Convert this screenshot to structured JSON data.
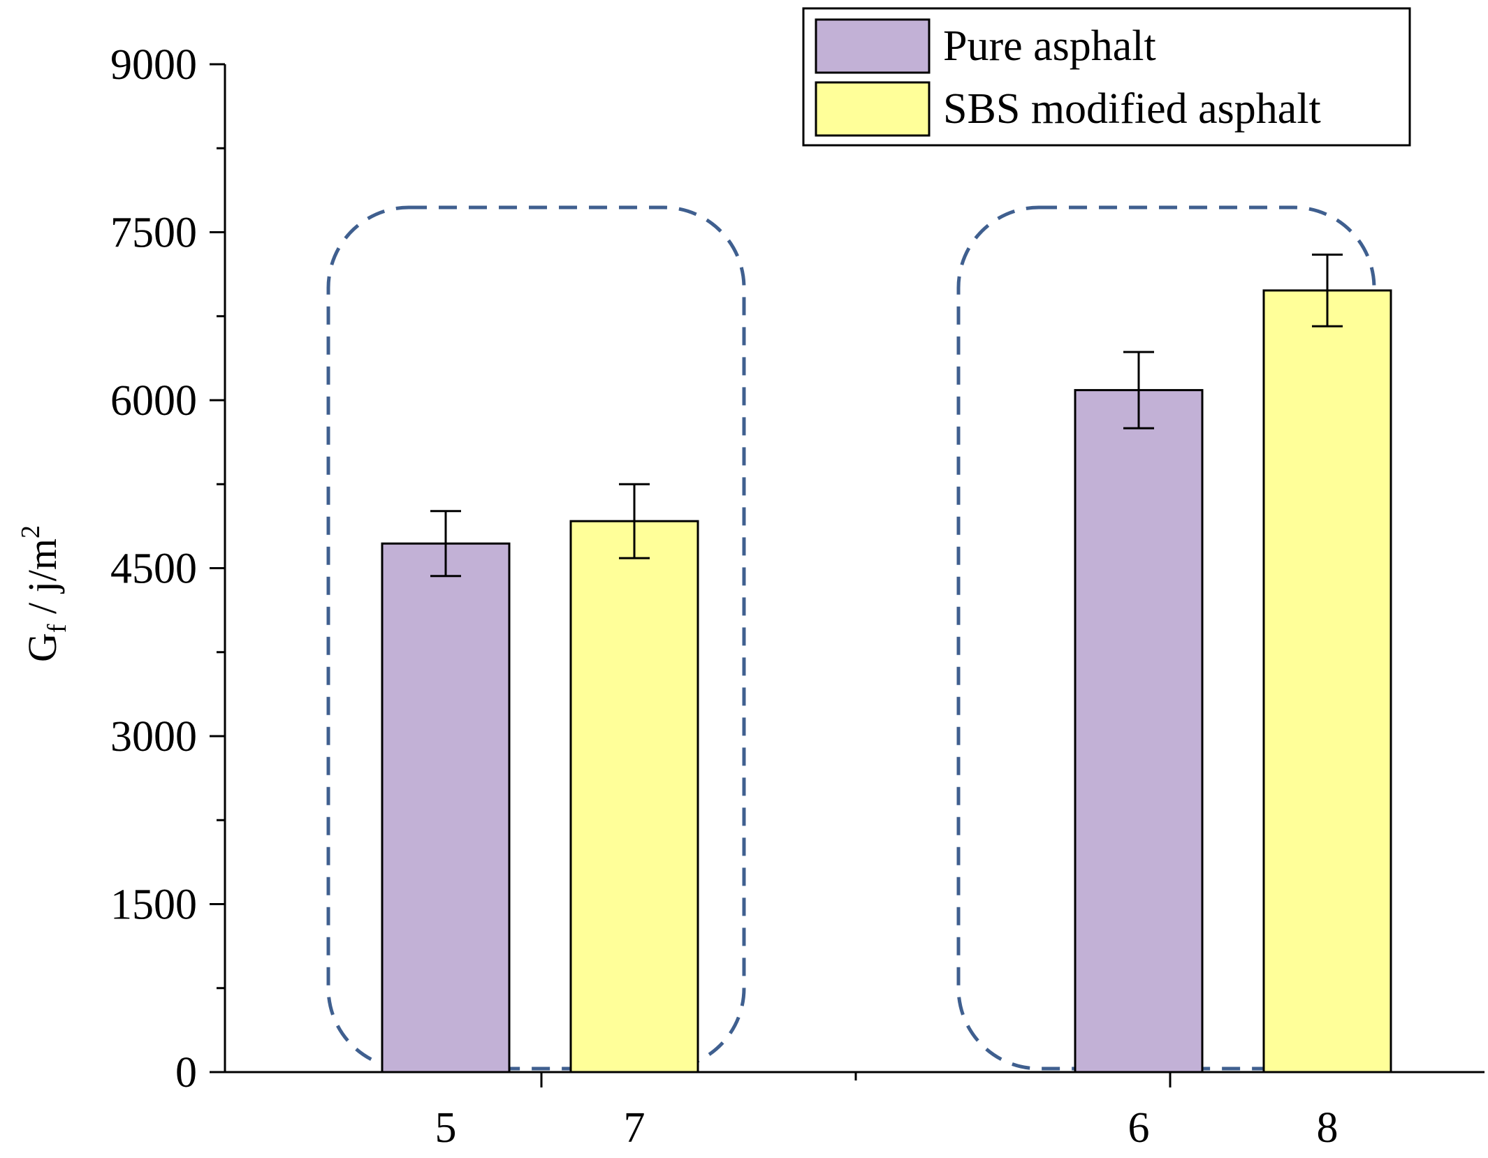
{
  "chart_data": {
    "type": "bar",
    "ylabel": {
      "main": "G",
      "sub": "f",
      "rest": " / j/m",
      "sup": "2"
    },
    "ylim": [
      0,
      9000
    ],
    "y_ticks": [
      0,
      1500,
      3000,
      4500,
      6000,
      7500,
      9000
    ],
    "y_minor_step": 750,
    "grid": false,
    "legend": {
      "placement": "top-right",
      "entries": [
        "Pure asphalt",
        "SBS modified asphalt"
      ]
    },
    "series": [
      {
        "name": "Pure asphalt",
        "color": "#c2b1d6"
      },
      {
        "name": "SBS modified asphalt",
        "color": "#ffff99"
      }
    ],
    "groups": [
      {
        "bars": [
          {
            "label": "5",
            "series": 0,
            "value": 4720,
            "error": 290
          },
          {
            "label": "7",
            "series": 1,
            "value": 4920,
            "error": 330
          }
        ]
      },
      {
        "bars": [
          {
            "label": "6",
            "series": 0,
            "value": 6090,
            "error": 340
          },
          {
            "label": "8",
            "series": 1,
            "value": 6980,
            "error": 320
          }
        ]
      }
    ],
    "annotations": "dashed rounded boxes enclose each group",
    "annotation_color": "#3f5f8f"
  }
}
